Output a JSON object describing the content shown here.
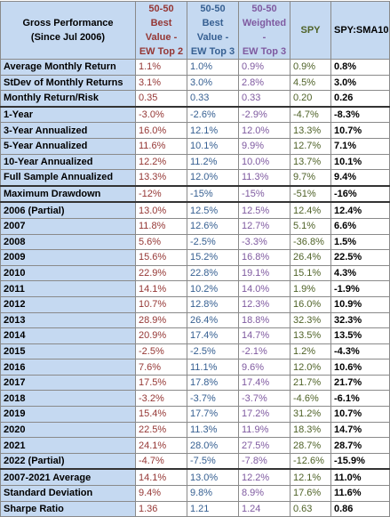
{
  "header": {
    "label_line1": "Gross Performance",
    "label_line2": "(Since Jul 2006)",
    "columns": [
      {
        "line1": "50-50",
        "line2": "Best Value -",
        "line3": "EW Top 2"
      },
      {
        "line1": "50-50",
        "line2": "Best Value -",
        "line3": "EW Top 3"
      },
      {
        "line1": "50-50",
        "line2": "Weighted -",
        "line3": "EW Top 3"
      },
      {
        "line1": "SPY",
        "line2": "",
        "line3": ""
      },
      {
        "line1": "SPY:SMA10",
        "line2": "",
        "line3": ""
      }
    ]
  },
  "colors": {
    "header_bg": "#c5d9f1",
    "col1": "#953735",
    "col2": "#376092",
    "col3": "#7f5aa0",
    "col4": "#4f6228",
    "col5": "#000000"
  },
  "rows": [
    {
      "label": "Average Monthly Return",
      "v": [
        "1.1%",
        "1.0%",
        "0.9%",
        "0.9%",
        "0.8%"
      ],
      "group": false
    },
    {
      "label": "StDev of Monthly Returns",
      "v": [
        "3.1%",
        "3.0%",
        "2.8%",
        "4.5%",
        "3.0%"
      ],
      "group": false
    },
    {
      "label": "Monthly Return/Risk",
      "v": [
        "0.35",
        "0.33",
        "0.33",
        "0.20",
        "0.26"
      ],
      "group": false
    },
    {
      "label": "1-Year",
      "v": [
        "-3.0%",
        "-2.6%",
        "-2.9%",
        "-4.7%",
        "-8.3%"
      ],
      "group": true
    },
    {
      "label": "3-Year Annualized",
      "v": [
        "16.0%",
        "12.1%",
        "12.0%",
        "13.3%",
        "10.7%"
      ],
      "group": false
    },
    {
      "label": "5-Year Annualized",
      "v": [
        "11.6%",
        "10.1%",
        "9.9%",
        "12.7%",
        "7.1%"
      ],
      "group": false
    },
    {
      "label": "10-Year Annualized",
      "v": [
        "12.2%",
        "11.2%",
        "10.0%",
        "13.7%",
        "10.1%"
      ],
      "group": false
    },
    {
      "label": "Full Sample Annualized",
      "v": [
        "13.3%",
        "12.0%",
        "11.3%",
        "9.7%",
        "9.4%"
      ],
      "group": false
    },
    {
      "label": "Maximum Drawdown",
      "v": [
        "-12%",
        "-15%",
        "-15%",
        "-51%",
        "-16%"
      ],
      "group": true
    },
    {
      "label": "2006 (Partial)",
      "v": [
        "13.0%",
        "12.5%",
        "12.5%",
        "12.4%",
        "12.4%"
      ],
      "group": true
    },
    {
      "label": "2007",
      "v": [
        "11.8%",
        "12.6%",
        "12.7%",
        "5.1%",
        "6.6%"
      ],
      "group": false
    },
    {
      "label": "2008",
      "v": [
        "5.6%",
        "-2.5%",
        "-3.3%",
        "-36.8%",
        "1.5%"
      ],
      "group": false
    },
    {
      "label": "2009",
      "v": [
        "15.6%",
        "15.2%",
        "16.8%",
        "26.4%",
        "22.5%"
      ],
      "group": false
    },
    {
      "label": "2010",
      "v": [
        "22.9%",
        "22.8%",
        "19.1%",
        "15.1%",
        "4.3%"
      ],
      "group": false
    },
    {
      "label": "2011",
      "v": [
        "14.1%",
        "10.2%",
        "14.0%",
        "1.9%",
        "-1.9%"
      ],
      "group": false
    },
    {
      "label": "2012",
      "v": [
        "10.7%",
        "12.8%",
        "12.3%",
        "16.0%",
        "10.9%"
      ],
      "group": false
    },
    {
      "label": "2013",
      "v": [
        "28.9%",
        "26.4%",
        "18.8%",
        "32.3%",
        "32.3%"
      ],
      "group": false
    },
    {
      "label": "2014",
      "v": [
        "20.9%",
        "17.4%",
        "14.7%",
        "13.5%",
        "13.5%"
      ],
      "group": false
    },
    {
      "label": "2015",
      "v": [
        "-2.5%",
        "-2.5%",
        "-2.1%",
        "1.2%",
        "-4.3%"
      ],
      "group": false
    },
    {
      "label": "2016",
      "v": [
        "7.6%",
        "11.1%",
        "9.6%",
        "12.0%",
        "10.6%"
      ],
      "group": false
    },
    {
      "label": "2017",
      "v": [
        "17.5%",
        "17.8%",
        "17.4%",
        "21.7%",
        "21.7%"
      ],
      "group": false
    },
    {
      "label": "2018",
      "v": [
        "-3.2%",
        "-3.7%",
        "-3.7%",
        "-4.6%",
        "-6.1%"
      ],
      "group": false
    },
    {
      "label": "2019",
      "v": [
        "15.4%",
        "17.7%",
        "17.2%",
        "31.2%",
        "10.7%"
      ],
      "group": false
    },
    {
      "label": "2020",
      "v": [
        "22.5%",
        "11.3%",
        "11.9%",
        "18.3%",
        "14.7%"
      ],
      "group": false
    },
    {
      "label": "2021",
      "v": [
        "24.1%",
        "28.0%",
        "27.5%",
        "28.7%",
        "28.7%"
      ],
      "group": false
    },
    {
      "label": "2022 (Partial)",
      "v": [
        "-4.7%",
        "-7.5%",
        "-7.8%",
        "-12.6%",
        "-15.9%"
      ],
      "group": false
    },
    {
      "label": "2007-2021 Average",
      "v": [
        "14.1%",
        "13.0%",
        "12.2%",
        "12.1%",
        "11.0%"
      ],
      "group": true
    },
    {
      "label": "Standard Deviation",
      "v": [
        "9.4%",
        "9.8%",
        "8.9%",
        "17.6%",
        "11.6%"
      ],
      "group": false
    },
    {
      "label": "Sharpe Ratio",
      "v": [
        "1.36",
        "1.21",
        "1.24",
        "0.63",
        "0.86"
      ],
      "group": false
    }
  ]
}
